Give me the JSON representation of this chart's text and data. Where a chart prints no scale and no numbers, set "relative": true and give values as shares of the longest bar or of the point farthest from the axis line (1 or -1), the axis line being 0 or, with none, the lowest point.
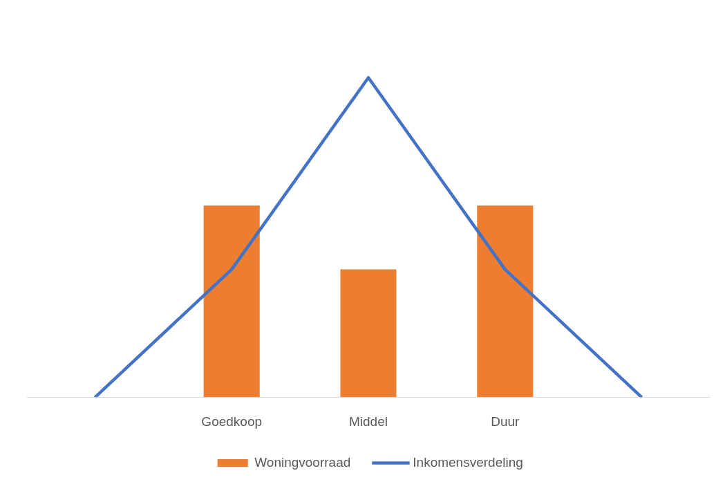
{
  "chart_data": {
    "type": "bar",
    "relative": true,
    "categories": [
      null,
      "Goedkoop",
      "Middel",
      "Duur",
      null
    ],
    "series": [
      {
        "name": "Woningvoorraad",
        "color": "#ed7d31",
        "values": [
          null,
          0.6,
          0.4,
          0.6,
          null
        ]
      },
      {
        "name": "Inkomensverdeling",
        "type": "line",
        "color": "#4472c4",
        "values": [
          0,
          0.4,
          1,
          0.4,
          0
        ]
      }
    ],
    "legend": "bottom",
    "grid": false,
    "marker": "none",
    "line_style": "solid"
  }
}
